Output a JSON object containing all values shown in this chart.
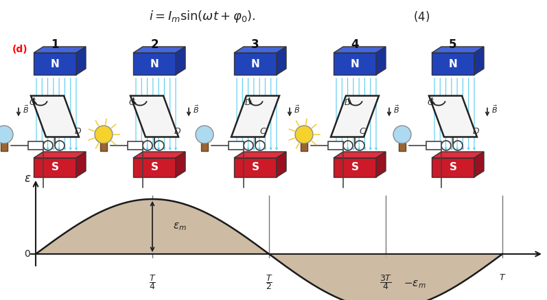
{
  "bg_color": "#ffffff",
  "fill_color": "#c8b49a",
  "sine_color": "#1a1a1a",
  "axis_color": "#1a1a1a",
  "arrow_color": "#1a1a1a",
  "blue_n_color": "#1e3fa0",
  "blue_n_face": "#2244bb",
  "blue_n_top": "#3355cc",
  "red_s_color": "#b01020",
  "red_s_face": "#cc1a28",
  "red_s_top": "#dd2030",
  "cyan_color": "#55ccee",
  "white_coil": "#f8f8f8",
  "magnet_labels": [
    "1",
    "2",
    "3",
    "4",
    "5"
  ],
  "bulb_bright_indices": [
    1,
    3
  ],
  "coil_flip": [
    false,
    false,
    true,
    true,
    false
  ],
  "b_vector_left": [
    true,
    false,
    false,
    false,
    false
  ],
  "T": 1.0
}
